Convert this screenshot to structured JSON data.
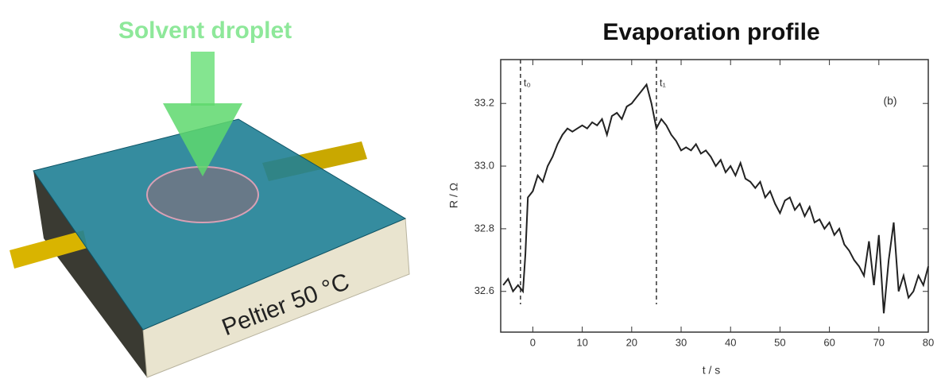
{
  "illustration": {
    "title": "Solvent droplet",
    "label": "Peltier 50 °C"
  },
  "chart_data": {
    "type": "line",
    "title": "Evaporation profile",
    "xlabel": "t / s",
    "ylabel": "R / Ω",
    "panel_label": "(b)",
    "xlim": [
      -6.5,
      80
    ],
    "ylim": [
      32.47,
      33.34
    ],
    "xticks": [
      0,
      10,
      20,
      30,
      40,
      50,
      60,
      70,
      80
    ],
    "yticks": [
      32.6,
      32.8,
      {
        "value": 33,
        "label": "33.0"
      },
      33.2
    ],
    "vlines": [
      {
        "x": -2.5,
        "label": "t₀"
      },
      {
        "x": 25,
        "label": "t₁"
      }
    ],
    "series": [
      {
        "color": "#222222",
        "x": [
          -6,
          -5,
          -4,
          -3,
          -2,
          -1.5,
          -1,
          0,
          1,
          2,
          3,
          4,
          5,
          6,
          7,
          8,
          9,
          10,
          11,
          12,
          13,
          14,
          15,
          16,
          17,
          18,
          19,
          20,
          21,
          22,
          23,
          24,
          25,
          26,
          27,
          28,
          29,
          30,
          31,
          32,
          33,
          34,
          35,
          36,
          37,
          38,
          39,
          40,
          41,
          42,
          43,
          44,
          45,
          46,
          47,
          48,
          49,
          50,
          51,
          52,
          53,
          54,
          55,
          56,
          57,
          58,
          59,
          60,
          61,
          62,
          63,
          64,
          65,
          66,
          67,
          68,
          69,
          70,
          71,
          72,
          73,
          74,
          75,
          76,
          77,
          78,
          79,
          80
        ],
        "values": [
          32.62,
          32.64,
          32.6,
          32.62,
          32.6,
          32.72,
          32.9,
          32.92,
          32.97,
          32.95,
          33.0,
          33.03,
          33.07,
          33.1,
          33.12,
          33.11,
          33.12,
          33.13,
          33.12,
          33.14,
          33.13,
          33.15,
          33.1,
          33.16,
          33.17,
          33.15,
          33.19,
          33.2,
          33.22,
          33.24,
          33.26,
          33.2,
          33.12,
          33.15,
          33.13,
          33.1,
          33.08,
          33.05,
          33.06,
          33.05,
          33.07,
          33.04,
          33.05,
          33.03,
          33.0,
          33.02,
          32.98,
          33.0,
          32.97,
          33.01,
          32.96,
          32.95,
          32.93,
          32.95,
          32.9,
          32.92,
          32.88,
          32.85,
          32.89,
          32.9,
          32.86,
          32.88,
          32.84,
          32.87,
          32.82,
          32.83,
          32.8,
          32.82,
          32.78,
          32.8,
          32.75,
          32.73,
          32.7,
          32.68,
          32.65,
          32.76,
          32.62,
          32.78,
          32.53,
          32.7,
          32.82,
          32.6,
          32.65,
          32.58,
          32.6,
          32.65,
          32.62,
          32.68
        ]
      }
    ]
  }
}
